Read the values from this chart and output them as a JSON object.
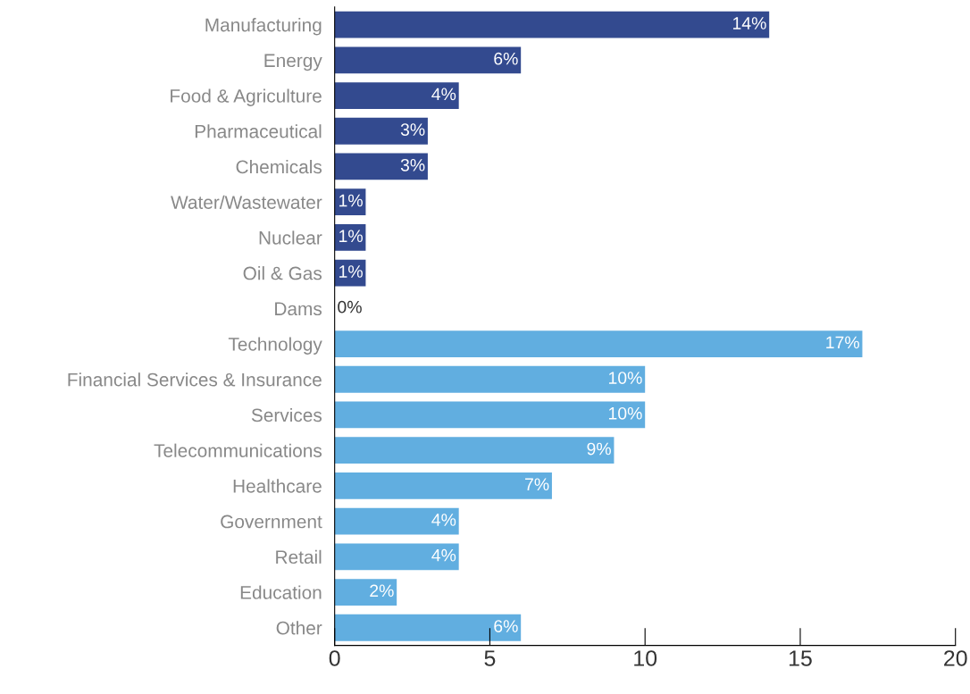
{
  "chart_data": {
    "type": "bar",
    "orientation": "horizontal",
    "categories": [
      "Manufacturing",
      "Energy",
      "Food & Agriculture",
      "Pharmaceutical",
      "Chemicals",
      "Water/Wastewater",
      "Nuclear",
      "Oil & Gas",
      "Dams",
      "Technology",
      "Financial Services & Insurance",
      "Services",
      "Telecommunications",
      "Healthcare",
      "Government",
      "Retail",
      "Education",
      "Other"
    ],
    "values": [
      14,
      6,
      4,
      3,
      3,
      1,
      1,
      1,
      0,
      17,
      10,
      10,
      9,
      7,
      4,
      4,
      2,
      6
    ],
    "value_labels": [
      "14%",
      "6%",
      "4%",
      "3%",
      "3%",
      "1%",
      "1%",
      "1%",
      "0%",
      "17%",
      "10%",
      "10%",
      "9%",
      "7%",
      "4%",
      "4%",
      "2%",
      "6%"
    ],
    "colors": [
      "#334a8f",
      "#334a8f",
      "#334a8f",
      "#334a8f",
      "#334a8f",
      "#334a8f",
      "#334a8f",
      "#334a8f",
      "#334a8f",
      "#61aee0",
      "#61aee0",
      "#61aee0",
      "#61aee0",
      "#61aee0",
      "#61aee0",
      "#61aee0",
      "#61aee0",
      "#61aee0"
    ],
    "xlim": [
      0,
      20
    ],
    "xticks": [
      0,
      5,
      10,
      15,
      20
    ],
    "grid": false,
    "legend": false
  }
}
